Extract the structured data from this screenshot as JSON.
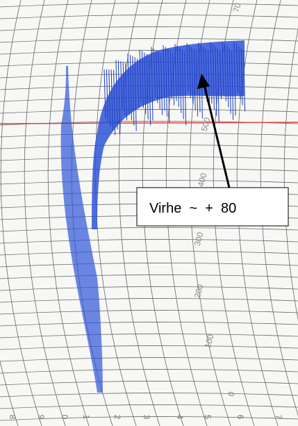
{
  "annotation": {
    "label": "Virhe  ~  +  80"
  },
  "scale_labels": [
    "0",
    "100",
    "200",
    "300",
    "400",
    "500",
    "70"
  ],
  "bottom_labels": [
    "8",
    "9",
    "0",
    "1",
    "2",
    "3",
    "4",
    "5",
    "6",
    "7"
  ]
}
